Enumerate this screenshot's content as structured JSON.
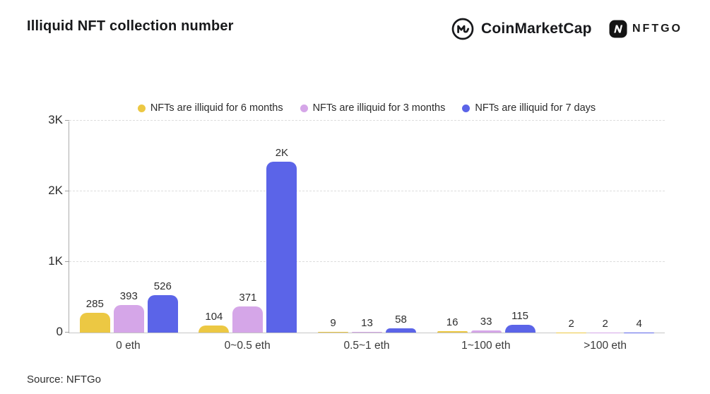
{
  "header": {
    "title": "Illiquid NFT collection number",
    "logos": {
      "coinmarketcap": "CoinMarketCap",
      "nftgo": "NFTGO"
    }
  },
  "chart_data": {
    "type": "bar",
    "title": "Illiquid NFT collection number",
    "categories": [
      "0 eth",
      "0~0.5 eth",
      "0.5~1 eth",
      "1~100 eth",
      ">100 eth"
    ],
    "series": [
      {
        "name": "NFTs are illiquid for 6 months",
        "color": "#ECC843",
        "values": [
          285,
          104,
          9,
          16,
          2
        ],
        "labels": [
          "285",
          "104",
          "9",
          "16",
          "2"
        ]
      },
      {
        "name": "NFTs are illiquid for 3 months",
        "color": "#D5A6E8",
        "values": [
          393,
          371,
          13,
          33,
          2
        ],
        "labels": [
          "393",
          "371",
          "13",
          "33",
          "2"
        ]
      },
      {
        "name": "NFTs are illiquid for 7 days",
        "color": "#5B64E8",
        "values": [
          526,
          2420,
          58,
          115,
          4
        ],
        "labels": [
          "526",
          "2K",
          "58",
          "115",
          "4"
        ]
      }
    ],
    "y_ticks": [
      {
        "value": 0,
        "label": "0"
      },
      {
        "value": 1000,
        "label": "1K"
      },
      {
        "value": 2000,
        "label": "2K"
      },
      {
        "value": 3000,
        "label": "3K"
      }
    ],
    "ylim": [
      0,
      3000
    ],
    "grid": "horizontal-dashed",
    "legend_position": "top-center"
  },
  "footer": {
    "source": "Source: NFTGo"
  }
}
